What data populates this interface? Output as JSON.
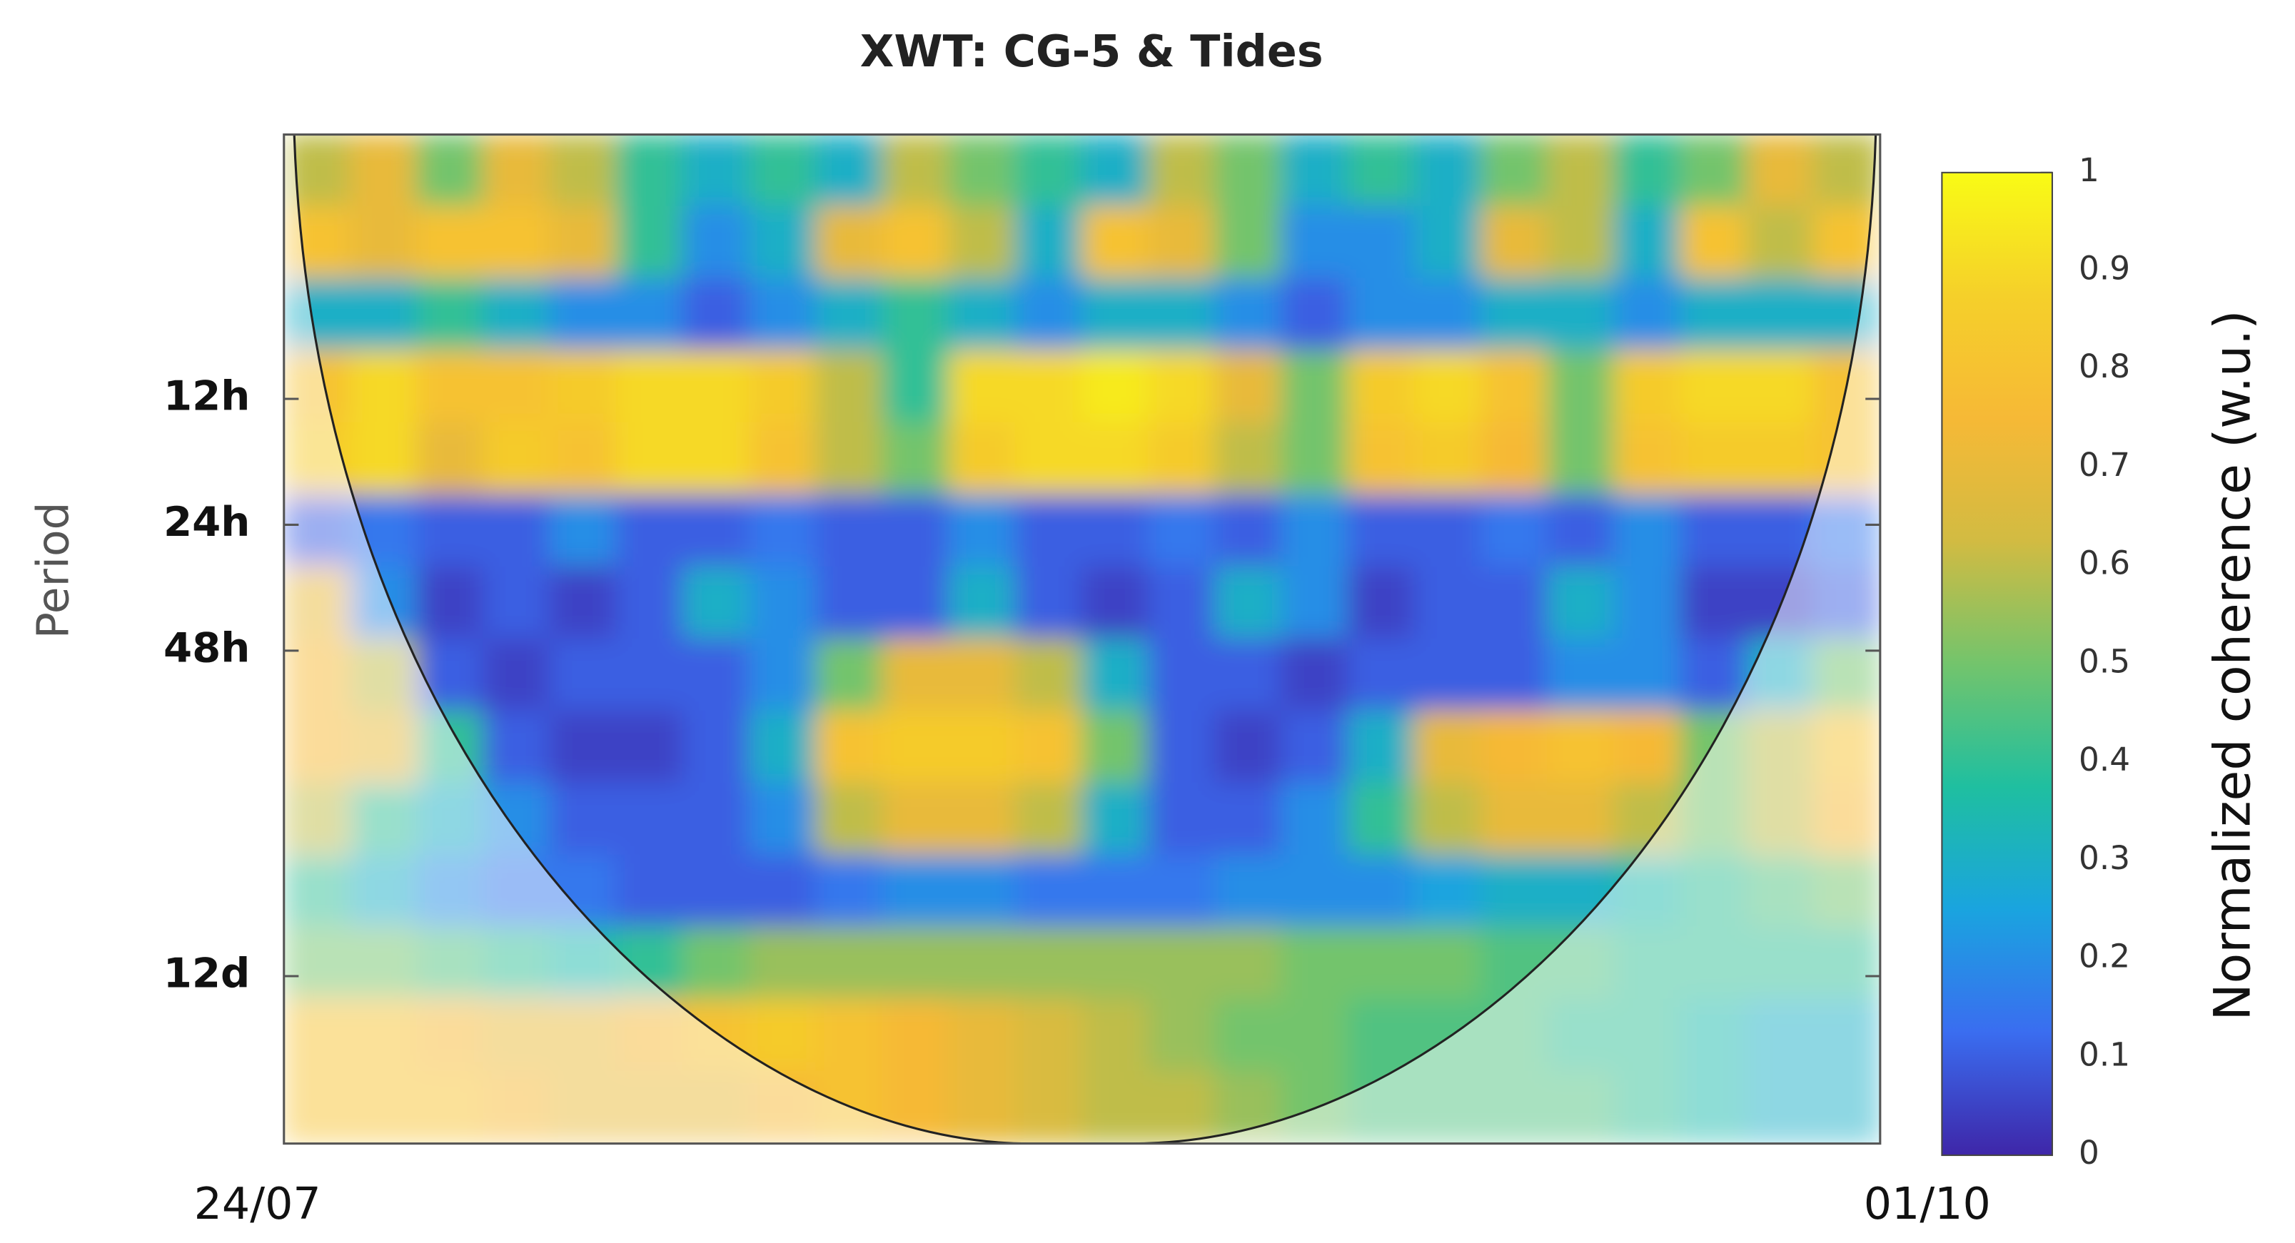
{
  "chart_data": {
    "type": "heatmap",
    "title": "XWT: CG-5 & Tides",
    "y_label": "Period",
    "y_log": true,
    "ylim": [
      2.8,
      724
    ],
    "yticks": [
      {
        "value": 12,
        "label": "12h"
      },
      {
        "value": 24,
        "label": "24h"
      },
      {
        "value": 48,
        "label": "48h"
      },
      {
        "value": 288,
        "label": "12d"
      }
    ],
    "x_tick_labels": [
      "24/07",
      "01/10"
    ],
    "colorbar_label": "Normalized coherence (w.u.)",
    "clim": [
      0,
      1
    ],
    "cticks": [
      0,
      0.1,
      0.2,
      0.3,
      0.4,
      0.5,
      0.6,
      0.7,
      0.8,
      0.9,
      1
    ],
    "colormap": [
      "#3e26a8",
      "#3a6df0",
      "#1aa4df",
      "#1fbfa0",
      "#73c46c",
      "#d2bb42",
      "#f6b936",
      "#f5d02a",
      "#f9fb15"
    ],
    "z": [
      [
        0.6,
        0.7,
        0.5,
        0.7,
        0.6,
        0.4,
        0.3,
        0.4,
        0.3,
        0.6,
        0.5,
        0.4,
        0.3,
        0.6,
        0.5,
        0.3,
        0.4,
        0.3,
        0.5,
        0.6,
        0.4,
        0.5,
        0.7,
        0.6
      ],
      [
        0.8,
        0.7,
        0.8,
        0.8,
        0.7,
        0.4,
        0.2,
        0.3,
        0.7,
        0.8,
        0.6,
        0.3,
        0.8,
        0.7,
        0.5,
        0.2,
        0.2,
        0.3,
        0.7,
        0.6,
        0.3,
        0.8,
        0.6,
        0.8
      ],
      [
        0.3,
        0.3,
        0.4,
        0.3,
        0.2,
        0.2,
        0.1,
        0.2,
        0.3,
        0.4,
        0.3,
        0.2,
        0.3,
        0.3,
        0.2,
        0.1,
        0.2,
        0.2,
        0.3,
        0.3,
        0.2,
        0.3,
        0.3,
        0.3
      ],
      [
        0.8,
        0.9,
        0.8,
        0.8,
        0.85,
        0.9,
        0.9,
        0.85,
        0.6,
        0.4,
        0.9,
        0.9,
        0.95,
        0.9,
        0.7,
        0.5,
        0.85,
        0.9,
        0.8,
        0.5,
        0.85,
        0.9,
        0.9,
        0.8
      ],
      [
        0.85,
        0.9,
        0.7,
        0.85,
        0.8,
        0.9,
        0.9,
        0.8,
        0.6,
        0.5,
        0.85,
        0.9,
        0.9,
        0.85,
        0.6,
        0.5,
        0.8,
        0.85,
        0.75,
        0.5,
        0.8,
        0.85,
        0.85,
        0.8
      ],
      [
        0.1,
        0.15,
        0.1,
        0.1,
        0.2,
        0.1,
        0.1,
        0.15,
        0.1,
        0.1,
        0.2,
        0.1,
        0.1,
        0.15,
        0.1,
        0.2,
        0.1,
        0.1,
        0.15,
        0.1,
        0.2,
        0.1,
        0.1,
        0.15
      ],
      [
        0.7,
        0.2,
        0.05,
        0.1,
        0.05,
        0.1,
        0.3,
        0.2,
        0.1,
        0.1,
        0.3,
        0.1,
        0.05,
        0.1,
        0.3,
        0.2,
        0.05,
        0.1,
        0.1,
        0.3,
        0.2,
        0.05,
        0.05,
        0.1
      ],
      [
        0.75,
        0.6,
        0.1,
        0.05,
        0.1,
        0.1,
        0.1,
        0.2,
        0.5,
        0.7,
        0.7,
        0.6,
        0.3,
        0.1,
        0.1,
        0.05,
        0.1,
        0.1,
        0.1,
        0.2,
        0.2,
        0.1,
        0.3,
        0.5
      ],
      [
        0.75,
        0.7,
        0.4,
        0.1,
        0.05,
        0.05,
        0.1,
        0.3,
        0.8,
        0.85,
        0.85,
        0.8,
        0.5,
        0.1,
        0.05,
        0.1,
        0.3,
        0.7,
        0.75,
        0.8,
        0.75,
        0.5,
        0.6,
        0.8
      ],
      [
        0.6,
        0.4,
        0.3,
        0.2,
        0.1,
        0.1,
        0.1,
        0.2,
        0.6,
        0.7,
        0.7,
        0.6,
        0.3,
        0.1,
        0.1,
        0.2,
        0.4,
        0.6,
        0.7,
        0.7,
        0.6,
        0.5,
        0.6,
        0.75
      ],
      [
        0.4,
        0.3,
        0.2,
        0.15,
        0.15,
        0.1,
        0.1,
        0.1,
        0.15,
        0.2,
        0.2,
        0.15,
        0.15,
        0.15,
        0.2,
        0.2,
        0.2,
        0.25,
        0.3,
        0.3,
        0.35,
        0.4,
        0.45,
        0.5
      ],
      [
        0.5,
        0.5,
        0.45,
        0.4,
        0.35,
        0.4,
        0.5,
        0.55,
        0.55,
        0.55,
        0.55,
        0.55,
        0.55,
        0.55,
        0.55,
        0.5,
        0.5,
        0.5,
        0.45,
        0.45,
        0.4,
        0.4,
        0.4,
        0.4
      ],
      [
        0.8,
        0.8,
        0.75,
        0.7,
        0.7,
        0.75,
        0.8,
        0.85,
        0.8,
        0.75,
        0.7,
        0.65,
        0.6,
        0.55,
        0.5,
        0.5,
        0.45,
        0.45,
        0.45,
        0.4,
        0.4,
        0.35,
        0.3,
        0.3
      ],
      [
        0.8,
        0.8,
        0.8,
        0.75,
        0.7,
        0.7,
        0.7,
        0.75,
        0.8,
        0.75,
        0.7,
        0.65,
        0.6,
        0.6,
        0.55,
        0.5,
        0.45,
        0.45,
        0.45,
        0.45,
        0.4,
        0.35,
        0.3,
        0.3
      ]
    ]
  }
}
